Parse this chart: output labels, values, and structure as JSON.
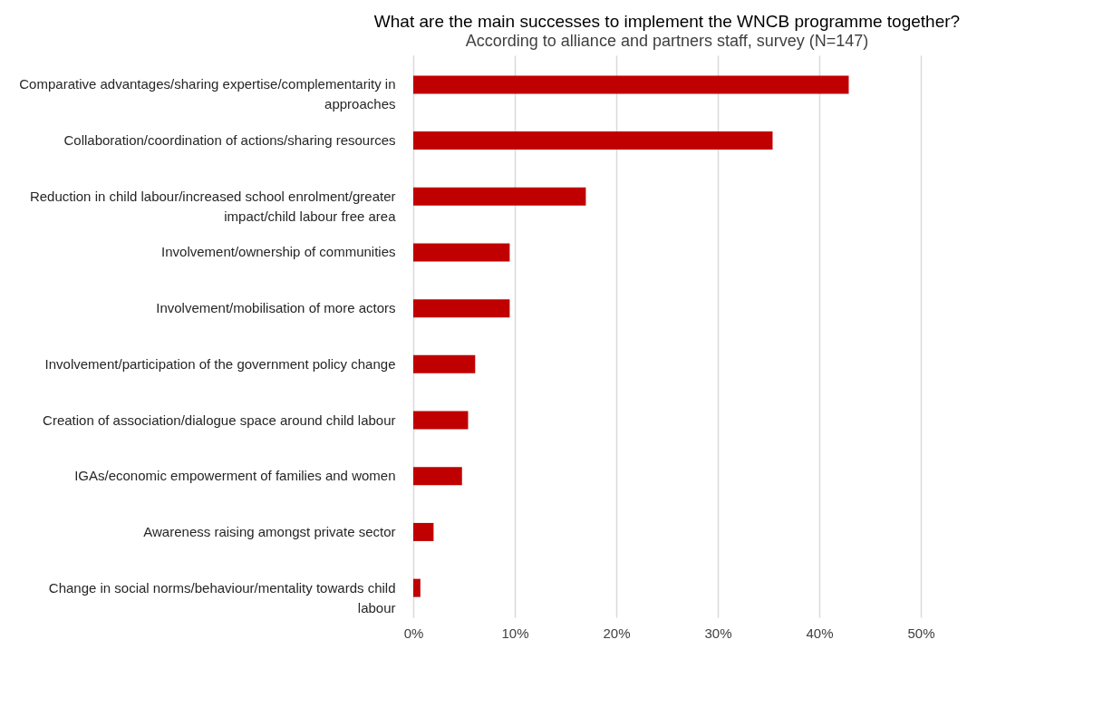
{
  "chart_data": {
    "type": "bar",
    "orientation": "horizontal",
    "title": "What are the main successes to implement the WNCB programme together?",
    "subtitle": "According to alliance and partners staff, survey (N=147)",
    "categories": [
      "Comparative advantages/sharing expertise/complementarity in approaches",
      "Collaboration/coordination of actions/sharing resources",
      "Reduction in child labour/increased school enrolment/greater impact/child labour free area",
      "Involvement/ownership of communities",
      "Involvement/mobilisation of more actors",
      "Involvement/participation of the government policy change",
      "Creation of association/dialogue space around child labour",
      "IGAs/economic empowerment of families and women",
      "Awareness raising amongst private sector",
      "Change in social norms/behaviour/mentality towards child labour"
    ],
    "values": [
      42.9,
      35.4,
      17.0,
      9.5,
      9.5,
      6.1,
      5.4,
      4.8,
      2.0,
      0.7
    ],
    "color": "#c00000",
    "xlim": [
      0,
      50
    ],
    "xticks": [
      {
        "value": 0,
        "label": "0%"
      },
      {
        "value": 10,
        "label": "10%"
      },
      {
        "value": 20,
        "label": "20%"
      },
      {
        "value": 30,
        "label": "30%"
      },
      {
        "value": 40,
        "label": "40%"
      },
      {
        "value": 50,
        "label": "50%"
      }
    ],
    "grid": "x"
  }
}
